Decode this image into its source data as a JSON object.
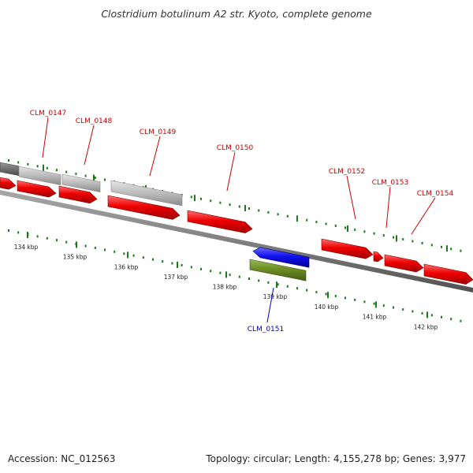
{
  "title": "Clostridium botulinum A2 str. Kyoto, complete genome",
  "accession_label": "Accession: NC_012563",
  "summary_label": "Topology: circular; Length: 4,155,278 bp; Genes: 3,977",
  "colors": {
    "forward_cds": "#ee0000",
    "reverse_cds": "#1010ee",
    "rna_feature": "#6b8e23",
    "gc_bar": "#bbbbbb",
    "gc_bar_dark": "#707070",
    "backbone": "#808080",
    "tick": "#1a7a1a",
    "forward_label": "#cc0000",
    "reverse_label": "#0000bb"
  },
  "ticks": [
    "134 kbp",
    "135 kbp",
    "136 kbp",
    "137 kbp",
    "138 kbp",
    "139 kbp",
    "140 kbp",
    "141 kbp",
    "142 kbp"
  ],
  "gene_labels": [
    {
      "name": "CLM_0147",
      "strand": "forward"
    },
    {
      "name": "CLM_0148",
      "strand": "forward"
    },
    {
      "name": "CLM_0149",
      "strand": "forward"
    },
    {
      "name": "CLM_0150",
      "strand": "forward"
    },
    {
      "name": "CLM_0152",
      "strand": "forward"
    },
    {
      "name": "CLM_0153",
      "strand": "forward"
    },
    {
      "name": "CLM_0154",
      "strand": "forward"
    },
    {
      "name": "CLM_0151",
      "strand": "reverse"
    }
  ]
}
